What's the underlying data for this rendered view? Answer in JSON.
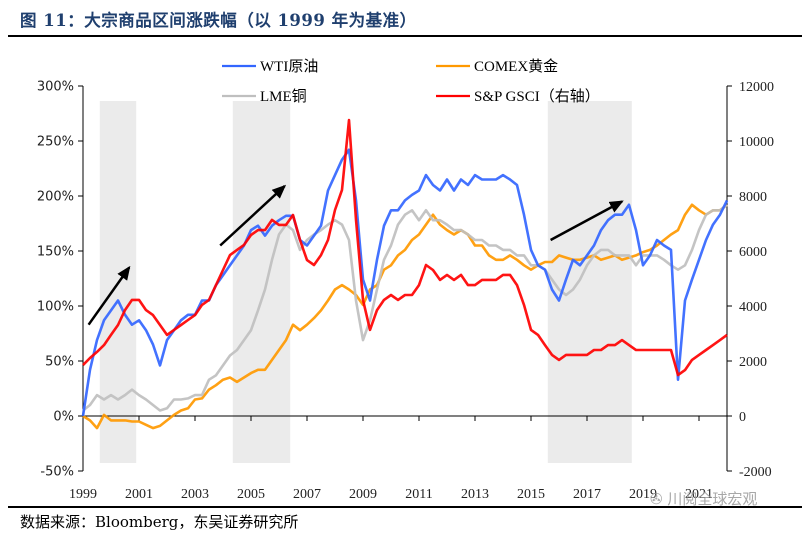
{
  "figure": {
    "title": "图 11：大宗商品区间涨跌幅（以 1999 年为基准）",
    "source": "数据来源：Bloomberg，东吴证券研究所",
    "watermark": "川阅全球宏观"
  },
  "chart_data": {
    "type": "line",
    "title": "大宗商品区间涨跌幅（以 1999 年为基准）",
    "xlabel": "",
    "ylabel": "",
    "y2label": "",
    "xlim": [
      1999,
      2022
    ],
    "ylim": [
      -50,
      300
    ],
    "y2lim": [
      -2000,
      12000
    ],
    "grid": false,
    "legend_position": "top-center",
    "x_ticks": [
      "1999",
      "2001",
      "2003",
      "2005",
      "2007",
      "2009",
      "2011",
      "2013",
      "2015",
      "2017",
      "2019",
      "2021"
    ],
    "y_ticks": [
      "300%",
      "250%",
      "200%",
      "150%",
      "100%",
      "50%",
      "0%",
      "-50%"
    ],
    "y2_ticks": [
      "12000",
      "10000",
      "8000",
      "6000",
      "4000",
      "2000",
      "0",
      "-2000"
    ],
    "x_start": 1999,
    "x_step": 0.25,
    "shaded_periods": [
      [
        1999.6,
        2000.9
      ],
      [
        2004.35,
        2006.4
      ],
      [
        2015.6,
        2018.6
      ]
    ],
    "annotations": [
      {
        "type": "arrow",
        "from": [
          1999.2,
          83
        ],
        "to": [
          2000.65,
          135
        ]
      },
      {
        "type": "arrow",
        "from": [
          2003.9,
          155
        ],
        "to": [
          2006.2,
          209
        ]
      },
      {
        "type": "arrow",
        "from": [
          2015.7,
          160
        ],
        "to": [
          2018.25,
          195
        ]
      }
    ],
    "series": [
      {
        "name": "WTI原油",
        "axis": "left",
        "unit": "%",
        "color": "#3366ff",
        "values": [
          0,
          42,
          69,
          87,
          96,
          105,
          92,
          83,
          87,
          78,
          65,
          46,
          69,
          78,
          87,
          92,
          92,
          105,
          105,
          119,
          128,
          137,
          146,
          155,
          169,
          173,
          164,
          173,
          178,
          182,
          182,
          160,
          155,
          164,
          173,
          205,
          219,
          233,
          242,
          196,
          124,
          105,
          142,
          173,
          187,
          187,
          196,
          201,
          205,
          219,
          210,
          205,
          215,
          205,
          215,
          210,
          219,
          215,
          215,
          215,
          219,
          215,
          210,
          183,
          151,
          137,
          133,
          115,
          105,
          124,
          142,
          137,
          146,
          155,
          169,
          178,
          183,
          183,
          192,
          169,
          137,
          146,
          160,
          155,
          151,
          33,
          105,
          124,
          142,
          160,
          174,
          183,
          196
        ]
      },
      {
        "name": "COMEX黄金",
        "axis": "left",
        "unit": "%",
        "color": "#ff9900",
        "values": [
          0,
          -4,
          -11,
          1,
          -4,
          -4,
          -4,
          -5,
          -5,
          -8,
          -11,
          -9,
          -4,
          1,
          5,
          7,
          15,
          16,
          24,
          28,
          33,
          35,
          31,
          35,
          39,
          42,
          42,
          51,
          60,
          69,
          83,
          78,
          83,
          89,
          96,
          105,
          115,
          119,
          115,
          110,
          101,
          115,
          119,
          133,
          137,
          146,
          151,
          160,
          165,
          174,
          183,
          174,
          169,
          165,
          169,
          165,
          155,
          155,
          146,
          142,
          142,
          146,
          142,
          137,
          133,
          137,
          140,
          140,
          146,
          144,
          142,
          142,
          144,
          146,
          142,
          144,
          146,
          142,
          144,
          146,
          149,
          151,
          155,
          160,
          165,
          169,
          183,
          192,
          187,
          183,
          187,
          187,
          192
        ]
      },
      {
        "name": "LME铜",
        "axis": "left",
        "unit": "%",
        "color": "#bfbfbf",
        "values": [
          5,
          10,
          19,
          15,
          19,
          15,
          19,
          24,
          19,
          15,
          10,
          5,
          7,
          15,
          15,
          16,
          19,
          19,
          33,
          37,
          46,
          55,
          60,
          69,
          78,
          96,
          115,
          142,
          165,
          174,
          169,
          151,
          160,
          165,
          169,
          174,
          178,
          174,
          160,
          105,
          69,
          87,
          115,
          142,
          155,
          174,
          183,
          187,
          178,
          187,
          178,
          178,
          174,
          169,
          169,
          165,
          160,
          160,
          155,
          155,
          151,
          151,
          146,
          146,
          137,
          137,
          133,
          124,
          115,
          110,
          115,
          124,
          137,
          146,
          151,
          151,
          146,
          146,
          146,
          137,
          146,
          146,
          146,
          142,
          137,
          133,
          137,
          151,
          169,
          183,
          187,
          187,
          192
        ]
      },
      {
        "name": "S&P GSCI（右轴）",
        "axis": "right",
        "unit": "index",
        "color": "#ff0000",
        "values": [
          1850,
          2110,
          2330,
          2580,
          2950,
          3310,
          3850,
          4220,
          4220,
          3850,
          3670,
          3310,
          2950,
          3130,
          3310,
          3490,
          3670,
          4040,
          4220,
          4760,
          5310,
          5850,
          6040,
          6220,
          6580,
          6760,
          6760,
          7130,
          6950,
          6950,
          7310,
          6400,
          5670,
          5490,
          5850,
          6400,
          7490,
          8220,
          10760,
          7130,
          4220,
          3130,
          3850,
          4220,
          4400,
          4220,
          4400,
          4400,
          4760,
          5490,
          5310,
          4950,
          5130,
          4950,
          5130,
          4760,
          4760,
          4950,
          4950,
          4950,
          5130,
          5130,
          4760,
          4040,
          3130,
          2950,
          2580,
          2220,
          2040,
          2220,
          2220,
          2220,
          2220,
          2400,
          2400,
          2580,
          2580,
          2760,
          2580,
          2400,
          2400,
          2400,
          2400,
          2400,
          2400,
          1490,
          1670,
          2040,
          2220,
          2400,
          2580,
          2760,
          2950
        ]
      }
    ]
  }
}
